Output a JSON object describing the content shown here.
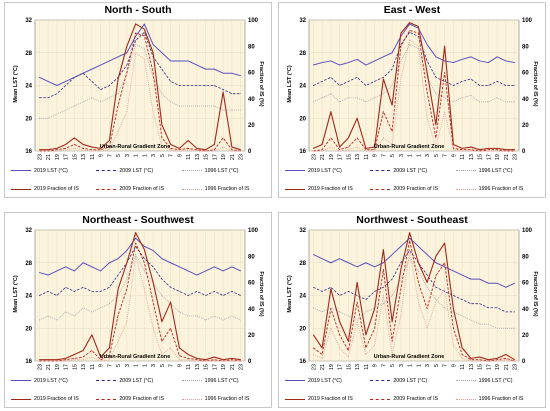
{
  "panels": [
    {
      "title": "North - South",
      "xlabel": "Urban-Rural Gradient Zone",
      "ylabel_left": "Mean LST (°C)",
      "ylabel_right": "Fraction of IS (%)",
      "legend": [
        "2019 LST (°C)",
        "2009 LST (°C)",
        "1996  LST (°C)",
        "2019 Fraction of IS",
        "2009 Fraction of IS",
        "1996 Fraction of IS"
      ]
    },
    {
      "title": "East - West",
      "xlabel": "Urban-Rural Gradient Zone",
      "ylabel_left": "Mean LST (°C)",
      "ylabel_right": "Fraction of IS (%)",
      "legend": [
        "2019 LST (°C)",
        "2009 LST (°C)",
        "1996  LST (°C)",
        "2019 Fraction of IS",
        "2009 Fraction of IS",
        "1996 Fraction of IS"
      ]
    },
    {
      "title": "Northeast - Southwest",
      "xlabel": "Urban-Rural Gradient Zone",
      "ylabel_left": "Mean LST (°C)",
      "ylabel_right": "Fraction of IS (%)",
      "legend": [
        "2019 LST (°C)",
        "2009 LST (°C)",
        "1996  LST (°C)",
        "2019 Fraction of IS",
        "2009 Fraction of IS",
        "1996 Fraction of IS"
      ]
    },
    {
      "title": "Northwest - Southeast",
      "xlabel": "Urban-Rural Gradient Zone",
      "ylabel_left": "Mean LST (°C)",
      "ylabel_right": "Fraction of IS (%)",
      "legend": [
        "2019 LST (°C)",
        "2009 LST (°C)",
        "1996  LST (°C)",
        "2019 Fraction of IS",
        "2009 Fraction of IS",
        "1996 Fraction of IS"
      ]
    }
  ],
  "colors": {
    "lst_2019": "#5a4fc0",
    "lst_2009": "#2a2a88",
    "lst_1996": "#a0a0a8",
    "is_2019": "#a02818",
    "is_2009": "#c0201a",
    "is_1996": "#e49a94",
    "plot_bg": "#fbf3dc",
    "grid": "#e6dcc2"
  },
  "chart_data": [
    {
      "type": "line",
      "title": "North - South",
      "xlabel": "Urban-Rural Gradient Zone",
      "ylabel": "Mean LST (°C)",
      "y2label": "Fraction of IS (%)",
      "ylim": [
        16,
        32
      ],
      "y2lim": [
        0,
        100
      ],
      "yticks": [
        16,
        20,
        24,
        28,
        32
      ],
      "y2ticks": [
        0,
        20,
        40,
        60,
        80,
        100
      ],
      "categories": [
        "23",
        "21",
        "19",
        "17",
        "15",
        "13",
        "11",
        "9",
        "7",
        "5",
        "3",
        "1",
        "1",
        "3",
        "5",
        "7",
        "9",
        "11",
        "13",
        "15",
        "17",
        "19",
        "21",
        "23"
      ],
      "grid": true,
      "legend_position": "bottom",
      "series": [
        {
          "name": "2019 LST (°C)",
          "axis": "left",
          "style": "solid",
          "values": [
            25.0,
            24.5,
            24.0,
            24.5,
            25.0,
            25.5,
            26.0,
            26.5,
            27.0,
            27.5,
            28.0,
            30.0,
            31.5,
            29.0,
            28.0,
            27.0,
            27.0,
            27.0,
            26.5,
            26.0,
            26.0,
            25.5,
            25.5,
            25.2
          ]
        },
        {
          "name": "2009 LST (°C)",
          "axis": "left",
          "style": "dash",
          "values": [
            22.5,
            22.5,
            23.0,
            24.0,
            25.0,
            25.5,
            24.5,
            23.5,
            24.0,
            25.0,
            26.5,
            29.5,
            30.5,
            27.5,
            26.0,
            24.5,
            24.0,
            24.0,
            24.0,
            24.0,
            24.0,
            23.5,
            23.0,
            23.0
          ]
        },
        {
          "name": "1996  LST (°C)",
          "axis": "left",
          "style": "dot",
          "values": [
            20.0,
            20.0,
            20.5,
            21.0,
            21.5,
            22.0,
            22.5,
            22.0,
            22.5,
            23.0,
            25.5,
            29.0,
            28.5,
            25.0,
            23.0,
            22.0,
            21.5,
            21.5,
            21.5,
            21.5,
            21.5,
            21.0,
            21.0,
            21.0
          ]
        },
        {
          "name": "2019 Fraction of IS",
          "axis": "right",
          "style": "solid",
          "values": [
            1,
            1,
            2,
            5,
            10,
            5,
            3,
            2,
            8,
            55,
            80,
            97,
            93,
            75,
            20,
            5,
            2,
            8,
            2,
            1,
            5,
            45,
            3,
            1
          ]
        },
        {
          "name": "2009 Fraction of IS",
          "axis": "right",
          "style": "dash",
          "values": [
            0,
            0,
            1,
            2,
            5,
            2,
            1,
            1,
            3,
            35,
            60,
            90,
            88,
            60,
            10,
            2,
            1,
            2,
            1,
            0,
            1,
            10,
            1,
            0
          ]
        },
        {
          "name": "1996 Fraction of IS",
          "axis": "right",
          "style": "dot",
          "values": [
            0,
            0,
            0,
            1,
            2,
            1,
            0,
            0,
            1,
            15,
            30,
            75,
            70,
            30,
            3,
            1,
            0,
            1,
            0,
            0,
            0,
            3,
            0,
            0
          ]
        }
      ]
    },
    {
      "type": "line",
      "title": "East - West",
      "xlabel": "Urban-Rural Gradient Zone",
      "ylabel": "Mean LST (°C)",
      "y2label": "Fraction of IS (%)",
      "ylim": [
        16,
        32
      ],
      "y2lim": [
        0,
        100
      ],
      "yticks": [
        16,
        20,
        24,
        28,
        32
      ],
      "y2ticks": [
        0,
        20,
        40,
        60,
        80,
        100
      ],
      "categories": [
        "23",
        "21",
        "19",
        "17",
        "15",
        "13",
        "11",
        "9",
        "7",
        "5",
        "3",
        "1",
        "1",
        "3",
        "5",
        "7",
        "9",
        "11",
        "13",
        "15",
        "17",
        "19",
        "21",
        "23"
      ],
      "grid": true,
      "legend_position": "bottom",
      "series": [
        {
          "name": "2019 LST (°C)",
          "axis": "left",
          "style": "solid",
          "values": [
            26.5,
            26.8,
            27.0,
            26.5,
            26.8,
            27.2,
            26.5,
            27.0,
            27.5,
            28.0,
            30.0,
            31.5,
            31.0,
            29.0,
            27.5,
            27.0,
            26.8,
            27.2,
            27.5,
            27.0,
            26.8,
            27.5,
            27.0,
            26.8
          ]
        },
        {
          "name": "2009 LST (°C)",
          "axis": "left",
          "style": "dash",
          "values": [
            24.0,
            24.5,
            25.0,
            24.0,
            24.5,
            25.0,
            24.0,
            24.5,
            25.0,
            26.0,
            29.0,
            30.5,
            30.0,
            27.0,
            25.0,
            24.5,
            24.0,
            24.5,
            24.8,
            24.0,
            24.0,
            24.5,
            24.0,
            24.0
          ]
        },
        {
          "name": "1996  LST (°C)",
          "axis": "left",
          "style": "dot",
          "values": [
            22.0,
            22.5,
            23.0,
            22.0,
            22.5,
            22.5,
            22.0,
            22.5,
            23.0,
            24.0,
            27.0,
            29.0,
            28.5,
            25.0,
            23.0,
            22.5,
            22.0,
            22.5,
            22.8,
            22.0,
            22.0,
            22.5,
            22.0,
            22.0
          ]
        },
        {
          "name": "2019 Fraction of IS",
          "axis": "right",
          "style": "solid",
          "values": [
            2,
            5,
            30,
            3,
            10,
            25,
            2,
            3,
            55,
            35,
            90,
            98,
            95,
            60,
            20,
            80,
            5,
            2,
            3,
            1,
            2,
            2,
            1,
            1
          ]
        },
        {
          "name": "2009 Fraction of IS",
          "axis": "right",
          "style": "dash",
          "values": [
            0,
            1,
            10,
            1,
            3,
            10,
            1,
            1,
            30,
            15,
            80,
            92,
            90,
            45,
            10,
            60,
            2,
            1,
            1,
            0,
            1,
            1,
            0,
            0
          ]
        },
        {
          "name": "1996 Fraction of IS",
          "axis": "right",
          "style": "dot",
          "values": [
            0,
            0,
            3,
            0,
            1,
            3,
            0,
            0,
            10,
            5,
            55,
            85,
            80,
            25,
            3,
            30,
            1,
            0,
            0,
            0,
            0,
            0,
            0,
            0
          ]
        }
      ]
    },
    {
      "type": "line",
      "title": "Northeast - Southwest",
      "xlabel": "Urban-Rural Gradient Zone",
      "ylabel": "Mean LST (°C)",
      "y2label": "Fraction of IS (%)",
      "ylim": [
        16,
        32
      ],
      "y2lim": [
        0,
        100
      ],
      "yticks": [
        16,
        20,
        24,
        28,
        32
      ],
      "y2ticks": [
        0,
        20,
        40,
        60,
        80,
        100
      ],
      "categories": [
        "23",
        "21",
        "19",
        "17",
        "15",
        "13",
        "11",
        "9",
        "7",
        "5",
        "3",
        "1",
        "1",
        "3",
        "5",
        "7",
        "9",
        "11",
        "13",
        "15",
        "17",
        "19",
        "21",
        "23"
      ],
      "grid": true,
      "legend_position": "bottom",
      "series": [
        {
          "name": "2019 LST (°C)",
          "axis": "left",
          "style": "solid",
          "values": [
            26.8,
            26.5,
            27.0,
            27.5,
            27.0,
            28.0,
            27.5,
            27.0,
            28.0,
            28.5,
            29.5,
            31.0,
            30.0,
            29.5,
            28.5,
            28.0,
            27.5,
            27.0,
            26.5,
            27.0,
            27.5,
            27.0,
            27.5,
            27.0
          ]
        },
        {
          "name": "2009 LST (°C)",
          "axis": "left",
          "style": "dash",
          "values": [
            24.0,
            24.5,
            24.0,
            25.0,
            24.5,
            25.0,
            24.5,
            24.5,
            25.0,
            26.5,
            28.0,
            30.0,
            28.5,
            27.5,
            26.0,
            25.0,
            24.5,
            24.0,
            24.5,
            24.0,
            24.5,
            24.0,
            24.5,
            24.0
          ]
        },
        {
          "name": "1996  LST (°C)",
          "axis": "left",
          "style": "dot",
          "values": [
            21.0,
            21.5,
            21.0,
            22.0,
            21.5,
            22.5,
            22.0,
            22.5,
            23.0,
            24.0,
            26.0,
            29.0,
            27.0,
            25.5,
            24.0,
            23.0,
            22.0,
            21.5,
            21.5,
            21.0,
            21.5,
            21.0,
            21.5,
            21.0
          ]
        },
        {
          "name": "2019 Fraction of IS",
          "axis": "right",
          "style": "solid",
          "values": [
            1,
            1,
            1,
            2,
            5,
            8,
            20,
            3,
            10,
            55,
            75,
            98,
            85,
            60,
            30,
            45,
            10,
            5,
            2,
            1,
            3,
            1,
            2,
            1
          ]
        },
        {
          "name": "2009 Fraction of IS",
          "axis": "right",
          "style": "dash",
          "values": [
            0,
            0,
            0,
            1,
            2,
            3,
            8,
            1,
            4,
            35,
            55,
            90,
            75,
            45,
            15,
            25,
            4,
            2,
            1,
            0,
            1,
            0,
            1,
            0
          ]
        },
        {
          "name": "1996 Fraction of IS",
          "axis": "right",
          "style": "dot",
          "values": [
            0,
            0,
            0,
            0,
            1,
            1,
            3,
            0,
            1,
            15,
            30,
            80,
            55,
            25,
            5,
            10,
            1,
            1,
            0,
            0,
            0,
            0,
            0,
            0
          ]
        }
      ]
    },
    {
      "type": "line",
      "title": "Northwest - Southeast",
      "xlabel": "Urban-Rural Gradient Zone",
      "ylabel": "Mean LST (°C)",
      "y2label": "Fraction of IS (%)",
      "ylim": [
        16,
        32
      ],
      "y2lim": [
        0,
        100
      ],
      "yticks": [
        16,
        20,
        24,
        28,
        32
      ],
      "y2ticks": [
        0,
        20,
        40,
        60,
        80,
        100
      ],
      "categories": [
        "23",
        "21",
        "19",
        "17",
        "15",
        "13",
        "11",
        "9",
        "7",
        "5",
        "3",
        "1",
        "1",
        "3",
        "5",
        "7",
        "9",
        "11",
        "13",
        "15",
        "17",
        "19",
        "21",
        "23"
      ],
      "grid": true,
      "legend_position": "bottom",
      "series": [
        {
          "name": "2019 LST (°C)",
          "axis": "left",
          "style": "solid",
          "values": [
            29.0,
            28.5,
            28.0,
            28.5,
            28.0,
            27.5,
            28.0,
            27.5,
            28.0,
            29.0,
            30.0,
            31.0,
            30.0,
            29.0,
            28.0,
            27.5,
            27.0,
            26.5,
            26.0,
            26.0,
            25.5,
            25.5,
            25.0,
            25.5
          ]
        },
        {
          "name": "2009 LST (°C)",
          "axis": "left",
          "style": "dash",
          "values": [
            25.0,
            24.5,
            25.0,
            24.0,
            24.5,
            24.0,
            23.5,
            24.5,
            25.0,
            26.0,
            28.0,
            29.5,
            28.0,
            26.5,
            25.0,
            24.5,
            24.0,
            23.5,
            23.0,
            23.0,
            22.5,
            22.5,
            22.0,
            22.0
          ]
        },
        {
          "name": "1996  LST (°C)",
          "axis": "left",
          "style": "dot",
          "values": [
            22.5,
            22.0,
            22.5,
            22.0,
            21.5,
            21.0,
            22.0,
            22.5,
            23.0,
            24.0,
            26.0,
            28.5,
            27.0,
            25.0,
            23.5,
            22.5,
            22.0,
            21.5,
            21.0,
            20.5,
            20.5,
            20.0,
            20.0,
            20.0
          ]
        },
        {
          "name": "2019 Fraction of IS",
          "axis": "right",
          "style": "solid",
          "values": [
            20,
            10,
            55,
            30,
            15,
            60,
            20,
            40,
            85,
            30,
            70,
            98,
            75,
            60,
            80,
            90,
            40,
            10,
            2,
            3,
            1,
            2,
            5,
            1
          ]
        },
        {
          "name": "2009 Fraction of IS",
          "axis": "right",
          "style": "dash",
          "values": [
            10,
            5,
            40,
            20,
            8,
            45,
            10,
            25,
            70,
            15,
            55,
            92,
            60,
            40,
            65,
            75,
            25,
            5,
            1,
            1,
            0,
            1,
            2,
            0
          ]
        },
        {
          "name": "1996 Fraction of IS",
          "axis": "right",
          "style": "dot",
          "values": [
            5,
            2,
            25,
            10,
            3,
            30,
            5,
            12,
            50,
            5,
            35,
            85,
            45,
            25,
            45,
            55,
            12,
            2,
            0,
            0,
            0,
            0,
            1,
            0
          ]
        }
      ]
    }
  ]
}
